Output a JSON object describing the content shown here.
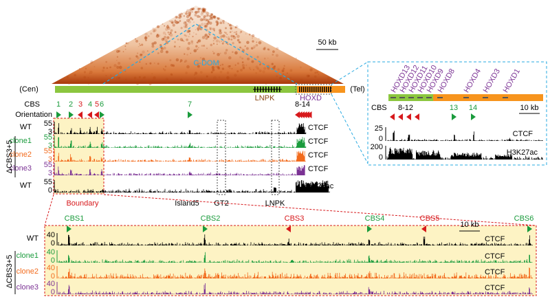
{
  "heatmap": {
    "domain_label": "C-DOM",
    "scale_bar": "50 kb"
  },
  "chromosome": {
    "left": "(Cen)",
    "right": "(Tel)",
    "genes": [
      "LNPK",
      "HOXD"
    ]
  },
  "cbs_row": {
    "label": "CBS",
    "sites": [
      "1",
      "2",
      "3",
      "4",
      "5",
      "6",
      "7",
      "8-14"
    ]
  },
  "orientation_label": "Orientation",
  "tracks": [
    {
      "sample": "WT",
      "mark": "CTCF",
      "ymax": 55,
      "ymin": 3
    },
    {
      "sample": "clone1",
      "mark": "CTCF",
      "ymax": 55,
      "ymin": 3
    },
    {
      "sample": "clone2",
      "mark": "CTCF",
      "ymax": 55,
      "ymin": 3
    },
    {
      "sample": "clone3",
      "mark": "CTCF",
      "ymax": 55,
      "ymin": 3
    },
    {
      "sample": "WT",
      "mark": "H3K27ac",
      "ymax": 55,
      "ymin": 0
    }
  ],
  "group_label": "ΔCBS3+5",
  "regions": [
    "Boundary",
    "Island5",
    "GT2",
    "LNPK"
  ],
  "inset": {
    "genes": [
      "HOXD13",
      "HOXD12",
      "HOXD11",
      "HOXD10",
      "HOXD9",
      "HOXD8",
      "HOXD4",
      "HOXD3",
      "HOXD1"
    ],
    "cbs_label": "CBS",
    "sites": [
      "8-12",
      "13",
      "14"
    ],
    "scale_bar": "10 kb",
    "tracks": [
      {
        "mark": "CTCF",
        "ymax": 25,
        "ymin": 0
      },
      {
        "mark": "H3K27ac",
        "ymax": 200,
        "ymin": 0
      }
    ]
  },
  "zoom": {
    "sites": [
      "CBS1",
      "CBS2",
      "CBS3",
      "CBS4",
      "CBS5",
      "CBS6"
    ],
    "scale_bar": "10 kb",
    "group_label": "ΔCBS3+5",
    "tracks": [
      {
        "sample": "WT",
        "mark": "CTCF",
        "ymax": 40,
        "ymin": 0
      },
      {
        "sample": "clone1",
        "mark": "CTCF",
        "ymax": 40,
        "ymin": 0
      },
      {
        "sample": "clone2",
        "mark": "CTCF",
        "ymax": 40,
        "ymin": 0
      },
      {
        "sample": "clone3",
        "mark": "CTCF",
        "ymax": 40,
        "ymin": 0
      }
    ]
  }
}
